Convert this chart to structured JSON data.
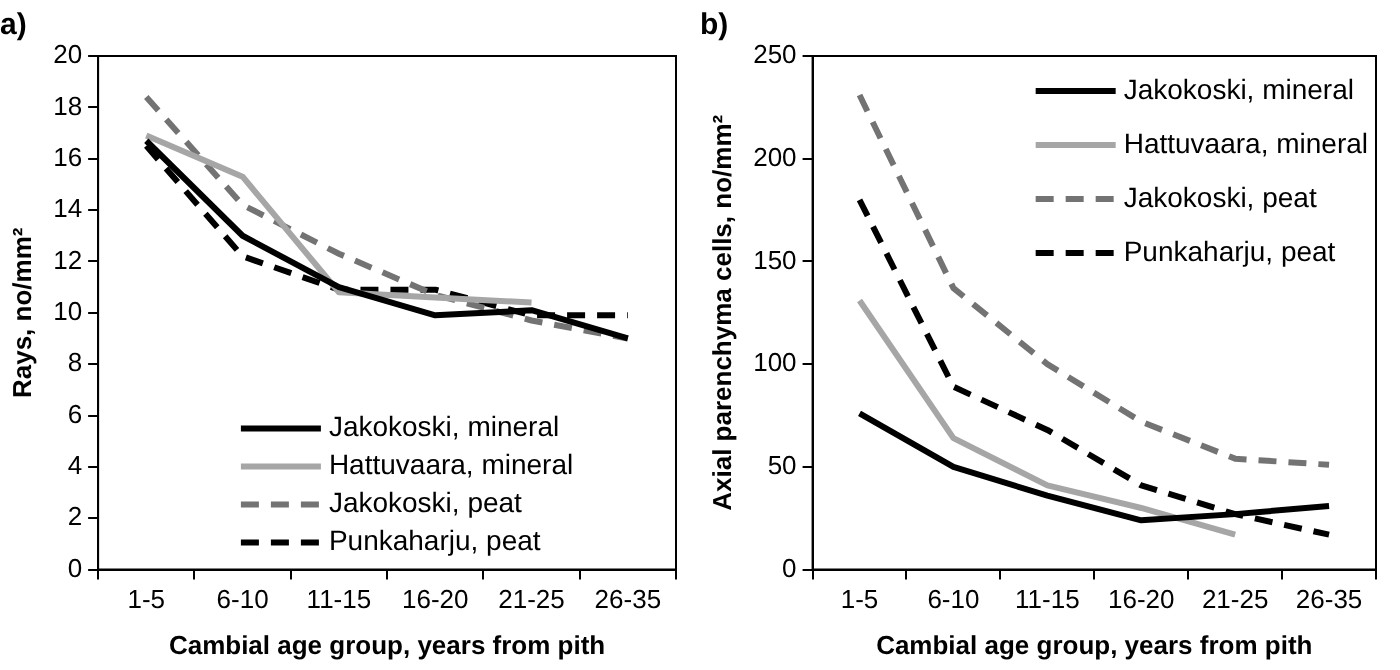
{
  "chart_data": [
    {
      "type": "line",
      "title": "a)",
      "xlabel": "Cambial age group, years from pith",
      "ylabel": "Rays, no/mm²",
      "categories": [
        "1-5",
        "6-10",
        "11-15",
        "16-20",
        "21-25",
        "26-35"
      ],
      "ylim": [
        0,
        20
      ],
      "yticks": [
        0,
        2,
        4,
        6,
        8,
        10,
        12,
        14,
        16,
        18,
        20
      ],
      "grid": false,
      "legend": "bottom",
      "marker": "none",
      "series": [
        {
          "name": "Jakokoski, mineral",
          "color": "#000000",
          "line_style": "solid",
          "values": [
            16.7,
            13.0,
            11.0,
            9.9,
            10.1,
            9.0
          ]
        },
        {
          "name": "Hattuvaara, mineral",
          "color": "#a6a6a6",
          "line_style": "solid",
          "values": [
            16.9,
            15.3,
            10.8,
            10.6,
            10.4,
            null
          ]
        },
        {
          "name": "Jakokoski, peat",
          "color": "#737373",
          "line_style": "dashed",
          "values": [
            18.4,
            14.2,
            12.3,
            10.7,
            9.7,
            9.0
          ]
        },
        {
          "name": "Punkaharju, peat",
          "color": "#000000",
          "line_style": "dashed",
          "values": [
            16.5,
            12.2,
            10.9,
            10.9,
            9.9,
            9.9
          ]
        }
      ]
    },
    {
      "type": "line",
      "title": "b)",
      "xlabel": "Cambial age group, years from pith",
      "ylabel": "Axial parenchyma cells, no/mm²",
      "categories": [
        "1-5",
        "6-10",
        "11-15",
        "16-20",
        "21-25",
        "26-35"
      ],
      "ylim": [
        0,
        250
      ],
      "yticks": [
        0,
        50,
        100,
        150,
        200,
        250
      ],
      "grid": false,
      "legend": "top right",
      "marker": "none",
      "series": [
        {
          "name": "Jakokoski, mineral",
          "color": "#000000",
          "line_style": "solid",
          "values": [
            76,
            50,
            36,
            24,
            27,
            31
          ]
        },
        {
          "name": "Hattuvaara, mineral",
          "color": "#a6a6a6",
          "line_style": "solid",
          "values": [
            131,
            64,
            41,
            30,
            17,
            null
          ]
        },
        {
          "name": "Jakokoski, peat",
          "color": "#737373",
          "line_style": "dashed",
          "values": [
            231,
            137,
            100,
            72,
            54,
            51
          ]
        },
        {
          "name": "Punkaharju, peat",
          "color": "#000000",
          "line_style": "dashed",
          "values": [
            180,
            89,
            68,
            41,
            27,
            17
          ]
        }
      ]
    }
  ]
}
